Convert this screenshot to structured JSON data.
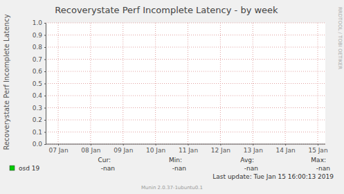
{
  "chart_data": {
    "type": "line",
    "title": "Recoverystate Perf Incomplete Latency - by week",
    "y_label": "Recoverystate Perf Incomplete Latency",
    "categories": [
      "07 Jan",
      "08 Jan",
      "09 Jan",
      "10 Jan",
      "11 Jan",
      "12 Jan",
      "13 Jan",
      "14 Jan",
      "15 Jan"
    ],
    "series": [
      {
        "name": "osd 19",
        "color": "#00cc00",
        "values": [
          null,
          null,
          null,
          null,
          null,
          null,
          null,
          null,
          null
        ],
        "stats": [
          "-nan",
          "-nan",
          "-nan",
          "-nan"
        ]
      }
    ],
    "stats_labels": [
      "Cur:",
      "Min:",
      "Avg:",
      "Max:"
    ],
    "ylim": [
      0,
      1
    ],
    "yticks": [
      {
        "value": 0,
        "label": "0.0"
      },
      {
        "value": 0.1,
        "label": "0.1"
      },
      {
        "value": 0.2,
        "label": "0.2"
      },
      {
        "value": 0.3,
        "label": "0.3"
      },
      {
        "value": 0.4,
        "label": "0.4"
      },
      {
        "value": 0.5,
        "label": "0.5"
      },
      {
        "value": 0.6,
        "label": "0.6"
      },
      {
        "value": 0.7,
        "label": "0.7"
      },
      {
        "value": 0.8,
        "label": "0.8"
      },
      {
        "value": 0.9,
        "label": "0.9"
      },
      {
        "value": 1,
        "label": "1.0"
      }
    ],
    "grid": true,
    "last_update": "Last update: Tue Jan 15 16:00:13 2019",
    "credit": "Munin 2.0.37-1ubuntu0.1",
    "watermark": "RRDTOOL / TOBI OETIKER"
  }
}
